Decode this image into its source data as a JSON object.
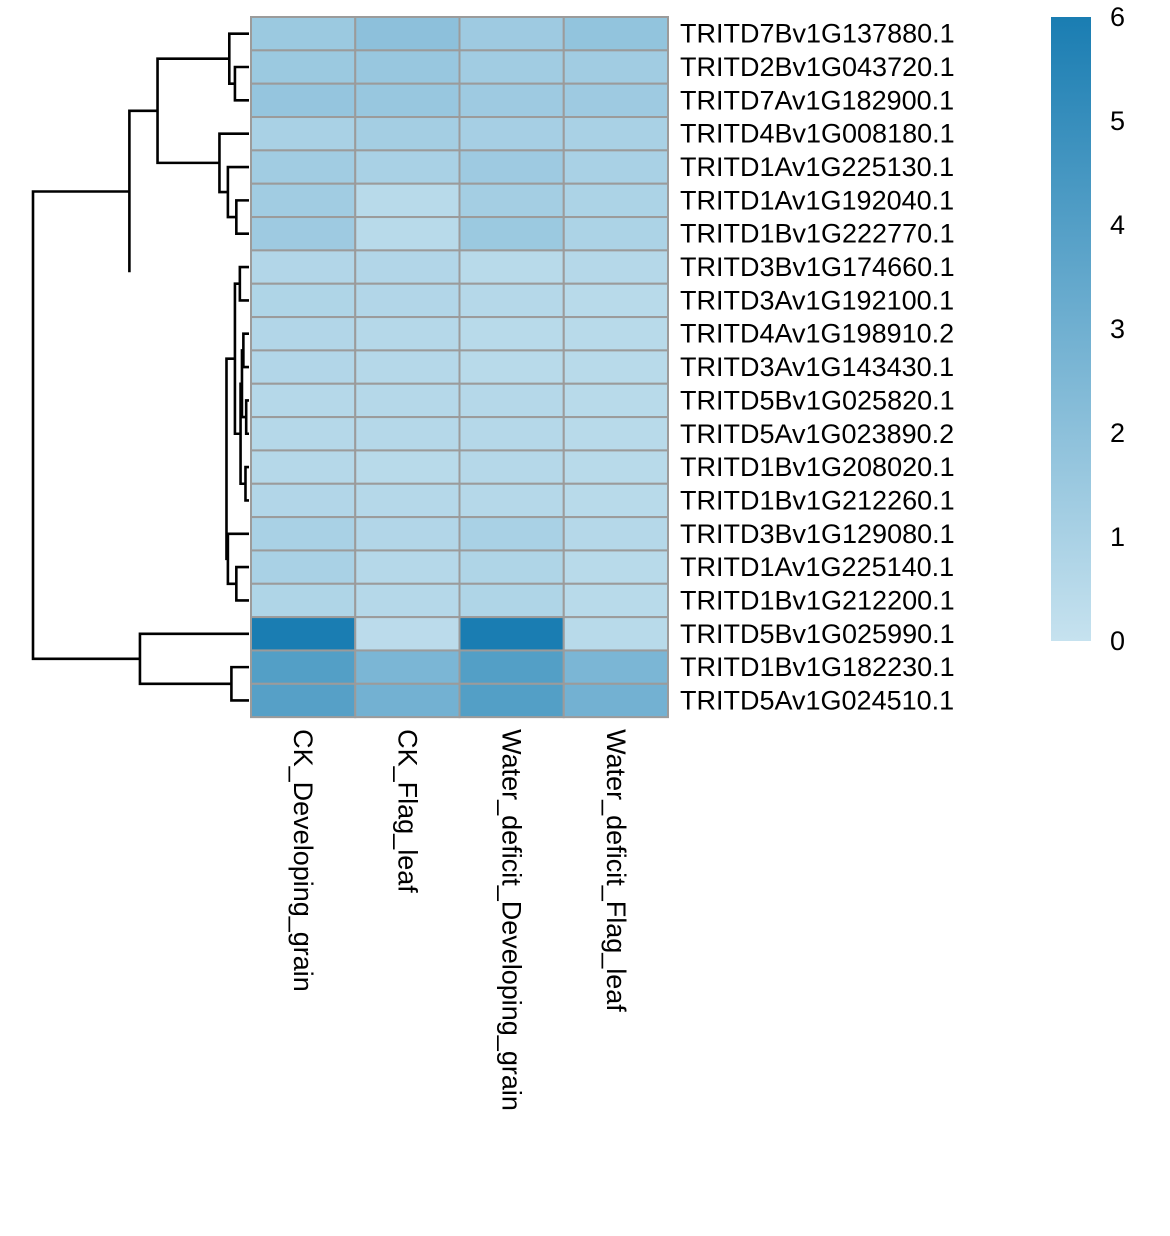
{
  "chart_data": {
    "type": "heatmap",
    "title": "",
    "rows": [
      "TRITD7Bv1G137880.1",
      "TRITD2Bv1G043720.1",
      "TRITD7Av1G182900.1",
      "TRITD4Bv1G008180.1",
      "TRITD1Av1G225130.1",
      "TRITD1Av1G192040.1",
      "TRITD1Bv1G222770.1",
      "TRITD3Bv1G174660.1",
      "TRITD3Av1G192100.1",
      "TRITD4Av1G198910.2",
      "TRITD3Av1G143430.1",
      "TRITD5Bv1G025820.1",
      "TRITD5Av1G023890.2",
      "TRITD1Bv1G208020.1",
      "TRITD1Bv1G212260.1",
      "TRITD3Bv1G129080.1",
      "TRITD1Av1G225140.1",
      "TRITD1Bv1G212200.1",
      "TRITD5Bv1G025990.1",
      "TRITD1Bv1G182230.1",
      "TRITD5Av1G024510.1"
    ],
    "columns": [
      "CK_Developing_grain",
      "CK_Flag_leaf",
      "Water_deficit_Developing_grain",
      "Water_deficit_Flag_leaf"
    ],
    "values": [
      [
        1.5,
        2.0,
        1.4,
        1.8
      ],
      [
        1.5,
        1.6,
        1.3,
        1.3
      ],
      [
        1.7,
        1.6,
        1.4,
        1.4
      ],
      [
        1.0,
        1.2,
        1.1,
        1.0
      ],
      [
        1.3,
        1.0,
        1.4,
        1.0
      ],
      [
        1.3,
        0.5,
        1.2,
        0.9
      ],
      [
        1.4,
        0.5,
        1.5,
        0.9
      ],
      [
        0.7,
        0.7,
        0.5,
        0.6
      ],
      [
        0.8,
        0.7,
        0.6,
        0.5
      ],
      [
        0.7,
        0.6,
        0.5,
        0.5
      ],
      [
        0.7,
        0.6,
        0.5,
        0.5
      ],
      [
        0.6,
        0.6,
        0.6,
        0.5
      ],
      [
        0.6,
        0.6,
        0.6,
        0.5
      ],
      [
        0.6,
        0.5,
        0.6,
        0.5
      ],
      [
        0.7,
        0.6,
        0.6,
        0.5
      ],
      [
        1.0,
        0.7,
        1.0,
        0.6
      ],
      [
        1.0,
        0.6,
        0.8,
        0.5
      ],
      [
        0.8,
        0.6,
        0.8,
        0.5
      ],
      [
        6.0,
        0.4,
        6.0,
        0.5
      ],
      [
        4.0,
        2.6,
        4.0,
        2.6
      ],
      [
        3.9,
        2.9,
        4.0,
        2.9
      ]
    ],
    "colorbar": {
      "min": 0,
      "max": 6,
      "ticks": [
        "0",
        "1",
        "2",
        "3",
        "4",
        "5",
        "6"
      ],
      "low_color": "#c6e2ef",
      "high_color": "#1a7db2"
    },
    "cell_border_color": "#9b9b9b",
    "dendrogram": {
      "leaf_order": [
        0,
        1,
        2,
        3,
        4,
        5,
        6,
        7,
        8,
        9,
        10,
        11,
        12,
        13,
        14,
        15,
        16,
        17,
        18,
        19,
        20
      ],
      "merges": [
        [
          1,
          2,
          0.2
        ],
        [
          0,
          -1,
          0.28
        ],
        [
          5,
          6,
          0.18
        ],
        [
          4,
          -3,
          0.3
        ],
        [
          3,
          -4,
          0.42
        ],
        [
          -2,
          -5,
          1.3
        ],
        [
          16,
          17,
          0.18
        ],
        [
          15,
          -7,
          0.3
        ],
        [
          9,
          10,
          0.08
        ],
        [
          11,
          12,
          0.04
        ],
        [
          -9,
          -10,
          0.1
        ],
        [
          13,
          14,
          0.05
        ],
        [
          -11,
          -12,
          0.12
        ],
        [
          7,
          8,
          0.13
        ],
        [
          -14,
          -13,
          0.2
        ],
        [
          -15,
          -8,
          0.32
        ],
        [
          -16,
          1.56
        ],
        [
          -6,
          -17,
          1.7
        ],
        [
          19,
          20,
          0.25
        ],
        [
          18,
          -19,
          1.55
        ],
        [
          -18,
          -20,
          3.07
        ]
      ]
    }
  }
}
